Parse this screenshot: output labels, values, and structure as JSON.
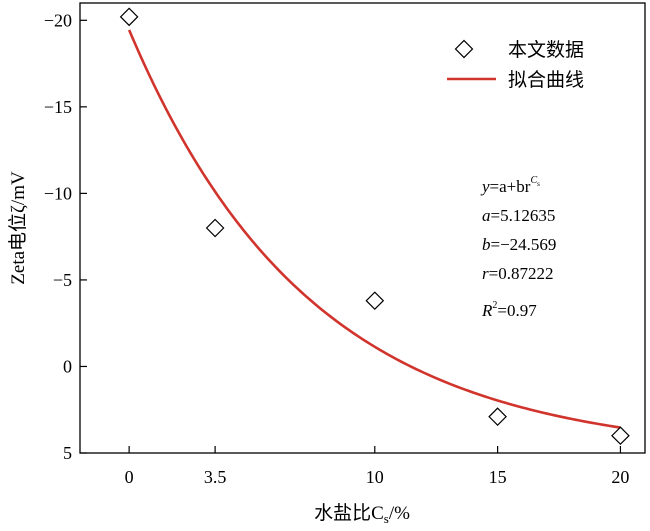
{
  "chart_data": {
    "type": "scatter",
    "xlabel": "水盐比C",
    "xlabel_sub": "s",
    "xlabel_unit": "/%",
    "ylabel": "Zeta电位ζ/mV",
    "xlim": [
      -2,
      21
    ],
    "ylim": [
      5,
      -21
    ],
    "x_ticks": [
      0,
      3.5,
      10,
      15,
      20
    ],
    "x_tick_labels": [
      "0",
      "3.5",
      "10",
      "15",
      "20"
    ],
    "y_ticks": [
      -20,
      -15,
      -10,
      -5,
      0,
      5
    ],
    "y_tick_labels": [
      "−20",
      "−15",
      "−10",
      "−5",
      "0",
      "5"
    ],
    "grid": false,
    "legend_position": "top-right",
    "series": [
      {
        "name": "本文数据",
        "marker": "diamond",
        "x": [
          0,
          3.5,
          10,
          15,
          20
        ],
        "y": [
          -20.2,
          -8.0,
          -3.8,
          2.9,
          4.0
        ]
      },
      {
        "name": "拟合曲线",
        "kind": "line",
        "equation": {
          "a": 5.12635,
          "b": -24.569,
          "r": 0.87222
        },
        "x_range": [
          0,
          20
        ],
        "color": "#d0342c"
      }
    ],
    "annotation": {
      "equation_y": "y",
      "equation_rest": "=a+br",
      "equation_sup": "C",
      "equation_sup_sub": "s",
      "line_a": "=5.12635",
      "line_b": "=−24.569",
      "line_r": "=0.87222",
      "line_R2": "=0.97",
      "var_a": "a",
      "var_b": "b",
      "var_r": "r",
      "var_R": "R",
      "sup_2": "2"
    }
  }
}
